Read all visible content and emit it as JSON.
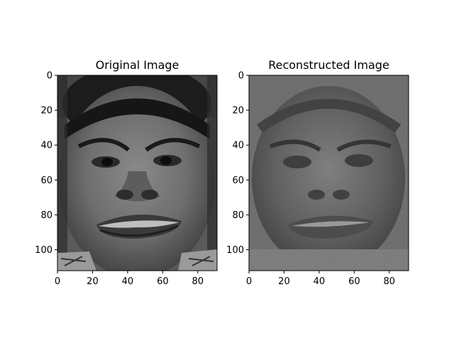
{
  "chart_data": [
    {
      "type": "image",
      "title": "Original Image",
      "image_kind": "grayscale-face-photo",
      "xlim": [
        0,
        91
      ],
      "ylim": [
        112,
        0
      ],
      "x_ticks": [
        0,
        20,
        40,
        60,
        80
      ],
      "y_ticks": [
        0,
        20,
        40,
        60,
        80,
        100
      ],
      "colormap": "gray"
    },
    {
      "type": "image",
      "title": "Reconstructed Image",
      "image_kind": "noisy-grayscale-face-reconstruction",
      "xlim": [
        0,
        91
      ],
      "ylim": [
        112,
        0
      ],
      "x_ticks": [
        0,
        20,
        40,
        60,
        80
      ],
      "y_ticks": [
        0,
        20,
        40,
        60,
        80,
        100
      ],
      "colormap": "gray"
    }
  ]
}
